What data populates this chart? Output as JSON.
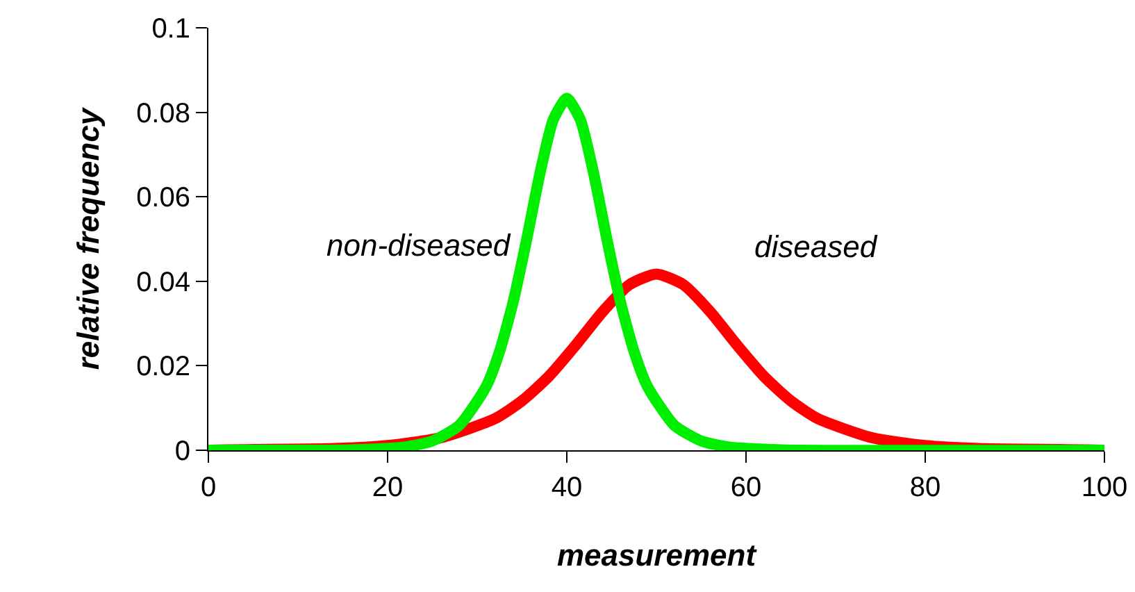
{
  "chart_data": {
    "type": "line",
    "xlabel": "measurement",
    "ylabel": "relative frequency",
    "xlim": [
      0,
      100
    ],
    "xticks": [
      0,
      20,
      40,
      60,
      80,
      100
    ],
    "ylim": [
      0,
      0.1
    ],
    "yticks": [
      0,
      0.02,
      0.04,
      0.06,
      0.08,
      0.1
    ],
    "grid": false,
    "legend": false,
    "marker": "none",
    "line_style": "solid",
    "series": [
      {
        "name": "diseased",
        "color": "#ff0000",
        "x": [
          0,
          2,
          14,
          20,
          26,
          32,
          35,
          38,
          41,
          44,
          47,
          50,
          53,
          56,
          59,
          62,
          65,
          68,
          74,
          80,
          86,
          98,
          100
        ],
        "values": [
          0,
          0.0001,
          0.0004,
          0.0011,
          0.003,
          0.0075,
          0.0117,
          0.0175,
          0.0249,
          0.0328,
          0.0392,
          0.0417,
          0.0392,
          0.0328,
          0.0249,
          0.0175,
          0.0117,
          0.0075,
          0.003,
          0.0011,
          0.0004,
          0.0001,
          0
        ]
      },
      {
        "name": "non-diseased",
        "color": "#00ee00",
        "x": [
          0,
          16,
          22,
          25,
          28,
          31,
          32.5,
          34,
          35.5,
          37,
          38.5,
          40,
          41.5,
          43,
          44.5,
          46,
          47.5,
          49,
          52,
          55,
          58,
          64,
          100
        ],
        "values": [
          0,
          0.0001,
          0.0008,
          0.0022,
          0.0059,
          0.0151,
          0.0234,
          0.035,
          0.0497,
          0.0655,
          0.0783,
          0.0833,
          0.0783,
          0.0655,
          0.0497,
          0.035,
          0.0234,
          0.0151,
          0.0059,
          0.0022,
          0.0008,
          0.0001,
          0
        ]
      }
    ]
  }
}
